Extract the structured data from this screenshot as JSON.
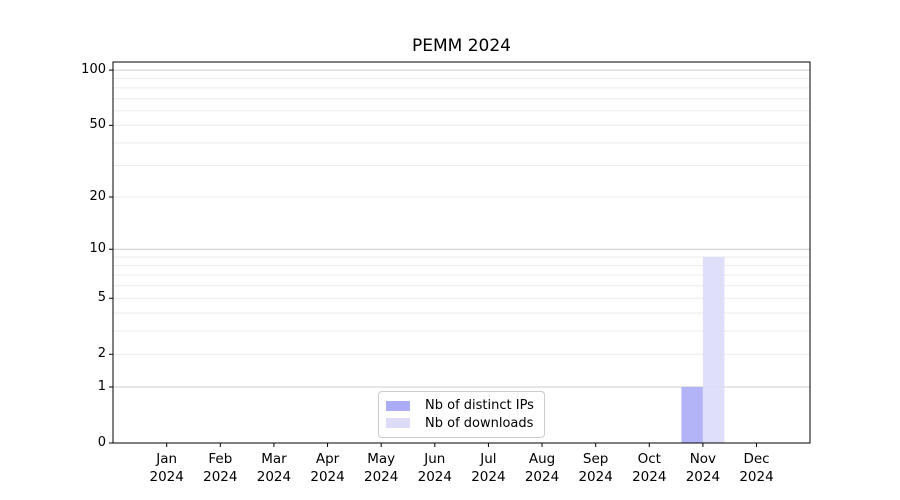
{
  "chart_data": {
    "type": "bar",
    "title": "PEMM 2024",
    "categories": [
      {
        "line1": "Jan",
        "line2": "2024"
      },
      {
        "line1": "Feb",
        "line2": "2024"
      },
      {
        "line1": "Mar",
        "line2": "2024"
      },
      {
        "line1": "Apr",
        "line2": "2024"
      },
      {
        "line1": "May",
        "line2": "2024"
      },
      {
        "line1": "Jun",
        "line2": "2024"
      },
      {
        "line1": "Jul",
        "line2": "2024"
      },
      {
        "line1": "Aug",
        "line2": "2024"
      },
      {
        "line1": "Sep",
        "line2": "2024"
      },
      {
        "line1": "Oct",
        "line2": "2024"
      },
      {
        "line1": "Nov",
        "line2": "2024"
      },
      {
        "line1": "Dec",
        "line2": "2024"
      }
    ],
    "series": [
      {
        "name": "Nb of distinct IPs",
        "color": "#acacf6",
        "values": [
          0,
          0,
          0,
          0,
          0,
          0,
          0,
          0,
          0,
          0,
          1,
          0
        ]
      },
      {
        "name": "Nb of downloads",
        "color": "#dcdcf8",
        "values": [
          0,
          0,
          0,
          0,
          0,
          0,
          0,
          0,
          0,
          0,
          9,
          0
        ]
      }
    ],
    "xlabel": "",
    "ylabel": "",
    "ylim": [
      0,
      110
    ],
    "yscale": "symlog-ln(1+x)",
    "yticks": [
      0,
      1,
      2,
      5,
      10,
      20,
      50,
      100
    ],
    "major_gridlines": [
      1,
      10,
      100
    ],
    "minor_gridlines": [
      2,
      3,
      4,
      5,
      6,
      7,
      8,
      9,
      20,
      30,
      40,
      50,
      60,
      70,
      80,
      90
    ],
    "grid": "horizontal only",
    "legend_position": "lower center",
    "colors": {
      "axis": "#000000",
      "major_grid": "#cccccc",
      "minor_grid": "#ebebeb",
      "text": "#000000",
      "background": "#ffffff"
    }
  }
}
